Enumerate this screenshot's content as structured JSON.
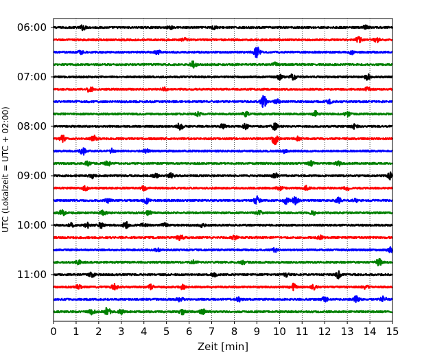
{
  "chart_data": {
    "type": "line",
    "title": "",
    "xlabel": "Zeit  [min]",
    "ylabel": "UTC (Lokalzeit = UTC + 02:00)",
    "xlim": [
      0,
      15
    ],
    "x_ticks": [
      0,
      1,
      2,
      3,
      4,
      5,
      6,
      7,
      8,
      9,
      10,
      11,
      12,
      13,
      14,
      15
    ],
    "x_tick_labels": [
      "0",
      "1",
      "2",
      "3",
      "4",
      "5",
      "6",
      "7",
      "8",
      "9",
      "10",
      "11",
      "12",
      "13",
      "14",
      "15"
    ],
    "y_ticks": [
      "06:00",
      "07:00",
      "08:00",
      "09:00",
      "10:00",
      "11:00"
    ],
    "grid": "vertical dotted at each minute",
    "trace_interval_minutes": 15,
    "start_time": "06:00",
    "trace_count": 24,
    "colors": [
      "#000000",
      "#ff0000",
      "#0000ff",
      "#008000"
    ],
    "bursts": [
      [
        [
          1.3,
          0.35
        ],
        [
          5.2,
          0.25
        ],
        [
          7.1,
          0.25
        ],
        [
          13.8,
          0.25
        ]
      ],
      [
        [
          5.8,
          0.25
        ],
        [
          13.5,
          0.45
        ],
        [
          14.3,
          0.35
        ]
      ],
      [
        [
          1.2,
          0.3
        ],
        [
          4.6,
          0.25
        ],
        [
          9.0,
          0.8
        ],
        [
          13.2,
          0.3
        ]
      ],
      [
        [
          6.2,
          0.5
        ],
        [
          9.8,
          0.25
        ]
      ],
      [
        [
          10.0,
          0.35
        ],
        [
          10.6,
          0.4
        ],
        [
          13.9,
          0.4
        ]
      ],
      [
        [
          1.6,
          0.45
        ],
        [
          4.9,
          0.25
        ],
        [
          13.9,
          0.25
        ]
      ],
      [
        [
          9.3,
          0.8
        ],
        [
          9.9,
          0.3
        ],
        [
          12.2,
          0.25
        ]
      ],
      [
        [
          6.4,
          0.25
        ],
        [
          8.5,
          0.3
        ],
        [
          11.6,
          0.4
        ],
        [
          13.0,
          0.3
        ]
      ],
      [
        [
          5.6,
          0.5
        ],
        [
          7.5,
          0.3
        ],
        [
          8.5,
          0.35
        ],
        [
          9.8,
          0.5
        ],
        [
          13.3,
          0.35
        ]
      ],
      [
        [
          0.4,
          0.45
        ],
        [
          1.8,
          0.45
        ],
        [
          9.8,
          0.85
        ],
        [
          10.8,
          0.25
        ]
      ],
      [
        [
          1.3,
          0.5
        ],
        [
          2.6,
          0.3
        ],
        [
          4.1,
          0.25
        ],
        [
          10.2,
          0.25
        ]
      ],
      [
        [
          1.5,
          0.3
        ],
        [
          2.4,
          0.3
        ],
        [
          11.4,
          0.3
        ],
        [
          12.6,
          0.3
        ]
      ],
      [
        [
          1.7,
          0.3
        ],
        [
          4.5,
          0.3
        ],
        [
          5.2,
          0.3
        ],
        [
          9.8,
          0.35
        ],
        [
          14.9,
          0.5
        ]
      ],
      [
        [
          1.4,
          0.3
        ],
        [
          4.0,
          0.3
        ],
        [
          10.0,
          0.25
        ],
        [
          11.2,
          0.3
        ],
        [
          13.0,
          0.3
        ]
      ],
      [
        [
          2.4,
          0.3
        ],
        [
          4.1,
          0.4
        ],
        [
          9.0,
          0.6
        ],
        [
          10.3,
          0.45
        ],
        [
          10.7,
          0.6
        ],
        [
          12.6,
          0.4
        ],
        [
          13.4,
          0.25
        ]
      ],
      [
        [
          0.4,
          0.45
        ],
        [
          2.2,
          0.3
        ],
        [
          4.2,
          0.3
        ],
        [
          9.1,
          0.25
        ],
        [
          11.5,
          0.3
        ]
      ],
      [
        [
          0.8,
          0.35
        ],
        [
          1.5,
          0.35
        ],
        [
          2.1,
          0.35
        ],
        [
          3.2,
          0.45
        ],
        [
          4.0,
          0.3
        ],
        [
          4.9,
          0.35
        ],
        [
          6.6,
          0.3
        ]
      ],
      [
        [
          5.6,
          0.45
        ],
        [
          8.0,
          0.25
        ],
        [
          11.8,
          0.25
        ]
      ],
      [
        [
          4.6,
          0.25
        ],
        [
          9.8,
          0.25
        ],
        [
          14.9,
          0.35
        ]
      ],
      [
        [
          1.1,
          0.3
        ],
        [
          6.2,
          0.25
        ],
        [
          8.4,
          0.25
        ],
        [
          14.4,
          0.5
        ]
      ],
      [
        [
          1.7,
          0.3
        ],
        [
          7.1,
          0.3
        ],
        [
          10.3,
          0.25
        ],
        [
          12.6,
          0.5
        ]
      ],
      [
        [
          1.1,
          0.3
        ],
        [
          2.7,
          0.4
        ],
        [
          4.3,
          0.3
        ],
        [
          5.7,
          0.3
        ],
        [
          10.6,
          0.45
        ],
        [
          11.5,
          0.35
        ],
        [
          13.8,
          0.25
        ]
      ],
      [
        [
          5.6,
          0.4
        ],
        [
          8.2,
          0.3
        ],
        [
          12.0,
          0.35
        ],
        [
          13.4,
          0.45
        ],
        [
          14.6,
          0.45
        ]
      ],
      [
        [
          1.7,
          0.35
        ],
        [
          2.4,
          0.7
        ],
        [
          3.0,
          0.35
        ],
        [
          5.7,
          0.35
        ],
        [
          6.6,
          0.35
        ]
      ]
    ]
  }
}
